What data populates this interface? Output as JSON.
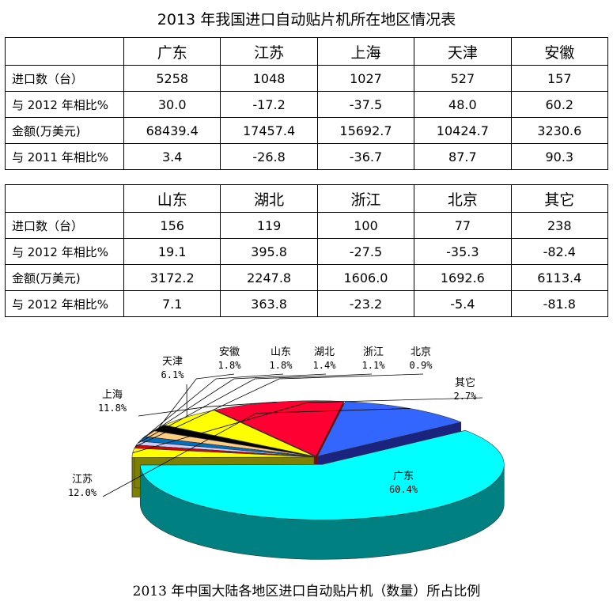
{
  "table_title": "2013 年我国进口自动贴片机所在地区情况表",
  "table1": {
    "headers": [
      "广东",
      "江苏",
      "上海",
      "天津",
      "安徽"
    ],
    "rows": [
      {
        "label": "进口数（台）",
        "values": [
          "5258",
          "1048",
          "1027",
          "527",
          "157"
        ]
      },
      {
        "label": "与 2012 年相比%",
        "values": [
          "30.0",
          "-17.2",
          "-37.5",
          "48.0",
          "60.2"
        ]
      },
      {
        "label": "金额(万美元)",
        "values": [
          "68439.4",
          "17457.4",
          "15692.7",
          "10424.7",
          "3230.6"
        ]
      },
      {
        "label": "与 2011 年相比%",
        "values": [
          "3.4",
          "-26.8",
          "-36.7",
          "87.7",
          "90.3"
        ]
      }
    ]
  },
  "table2": {
    "headers": [
      "山东",
      "湖北",
      "浙江",
      "北京",
      "其它"
    ],
    "rows": [
      {
        "label": "进口数（台）",
        "values": [
          "156",
          "119",
          "100",
          "77",
          "238"
        ]
      },
      {
        "label": "与 2012 年相比%",
        "values": [
          "19.1",
          "395.8",
          "-27.5",
          "-35.3",
          "-82.4"
        ]
      },
      {
        "label": "金额(万美元)",
        "values": [
          "3172.2",
          "2247.8",
          "1606.0",
          "1692.6",
          "6113.4"
        ]
      },
      {
        "label": "与 2012 年相比%",
        "values": [
          "7.1",
          "363.8",
          "-23.2",
          "-5.4",
          "-81.8"
        ]
      }
    ]
  },
  "chart_data": {
    "type": "pie",
    "title": "2013 年中国大陆各地区进口自动贴片机（数量）所占比例",
    "slices": [
      {
        "label": "广东",
        "value": 60.4,
        "pct": "60.4%",
        "color": "#00ffff",
        "side": "#008080"
      },
      {
        "label": "其它",
        "value": 2.7,
        "pct": "2.7%",
        "color": "#ffff00",
        "side": "#808000"
      },
      {
        "label": "北京",
        "value": 0.9,
        "pct": "0.9%",
        "color": "#dd0000",
        "side": "#800000"
      },
      {
        "label": "浙江",
        "value": 1.1,
        "pct": "1.1%",
        "color": "#ccccff",
        "side": "#6666aa"
      },
      {
        "label": "湖北",
        "value": 1.4,
        "pct": "1.4%",
        "color": "#0070c0",
        "side": "#003870"
      },
      {
        "label": "山东",
        "value": 1.8,
        "pct": "1.8%",
        "color": "#ffcc80",
        "side": "#b08040"
      },
      {
        "label": "安徽",
        "value": 1.8,
        "pct": "1.8%",
        "color": "#000000",
        "side": "#000000"
      },
      {
        "label": "天津",
        "value": 6.1,
        "pct": "6.1%",
        "color": "#ffff00",
        "side": "#808000"
      },
      {
        "label": "上海",
        "value": 11.8,
        "pct": "11.8%",
        "color": "#ff0033",
        "side": "#800000"
      },
      {
        "label": "江苏",
        "value": 12.0,
        "pct": "12.0%",
        "color": "#3366ff",
        "side": "#1a237e"
      }
    ],
    "legend": "none"
  }
}
